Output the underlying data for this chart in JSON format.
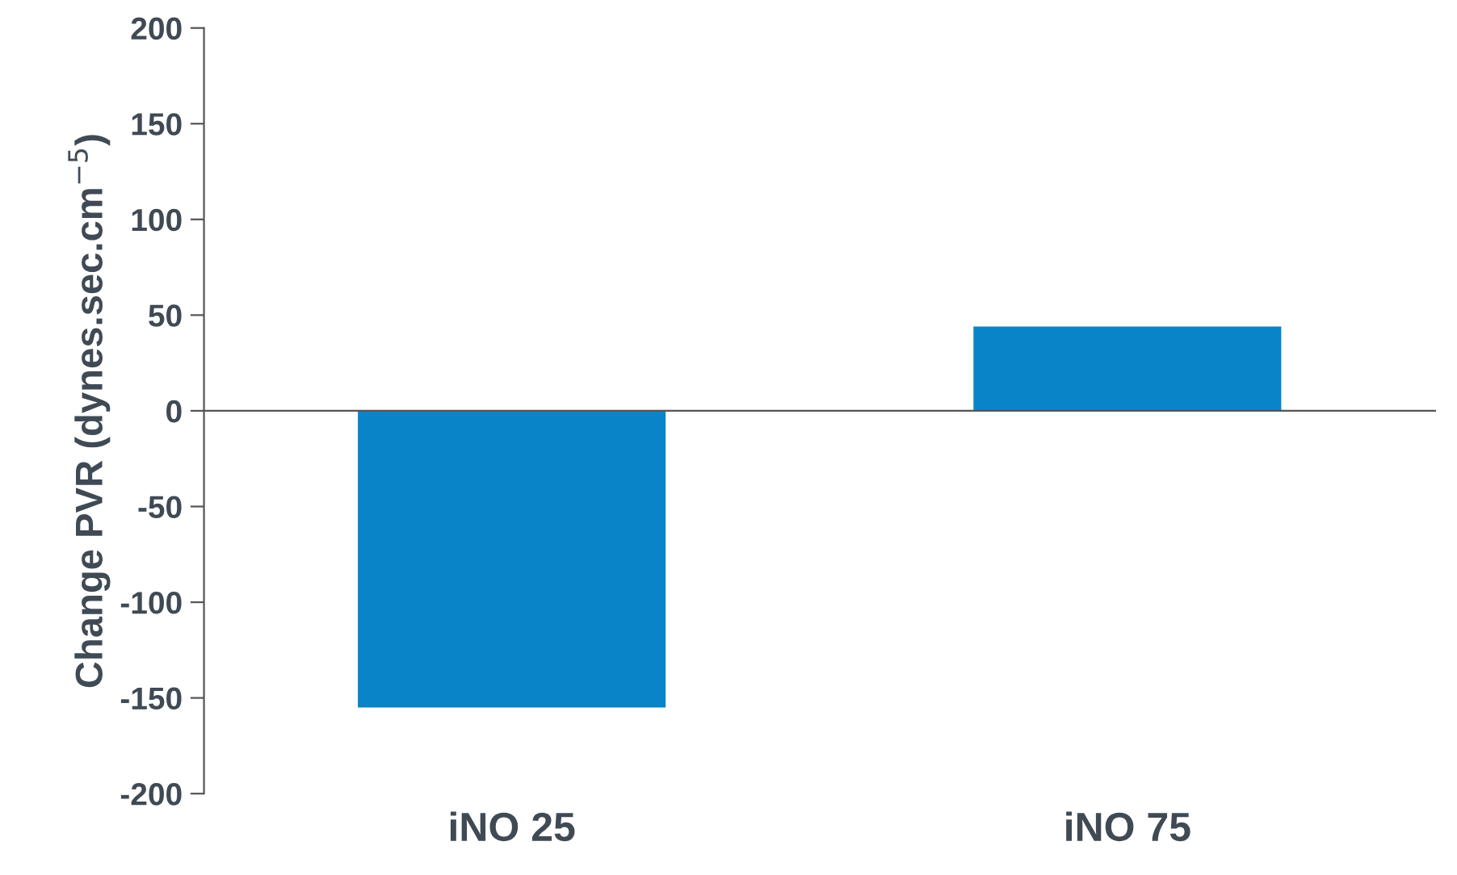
{
  "chart_data": {
    "type": "bar",
    "ylabel": "Change PVR (dynes.sec.cm$^{−5}$)",
    "categories": [
      "iNO 25",
      "iNO 75"
    ],
    "values": [
      -155,
      44
    ],
    "color": "#0a84c8",
    "ylim": [
      -200,
      200
    ],
    "yticks": [
      -200,
      -150,
      -100,
      -50,
      0,
      50,
      100,
      150,
      200
    ],
    "legend": false
  }
}
